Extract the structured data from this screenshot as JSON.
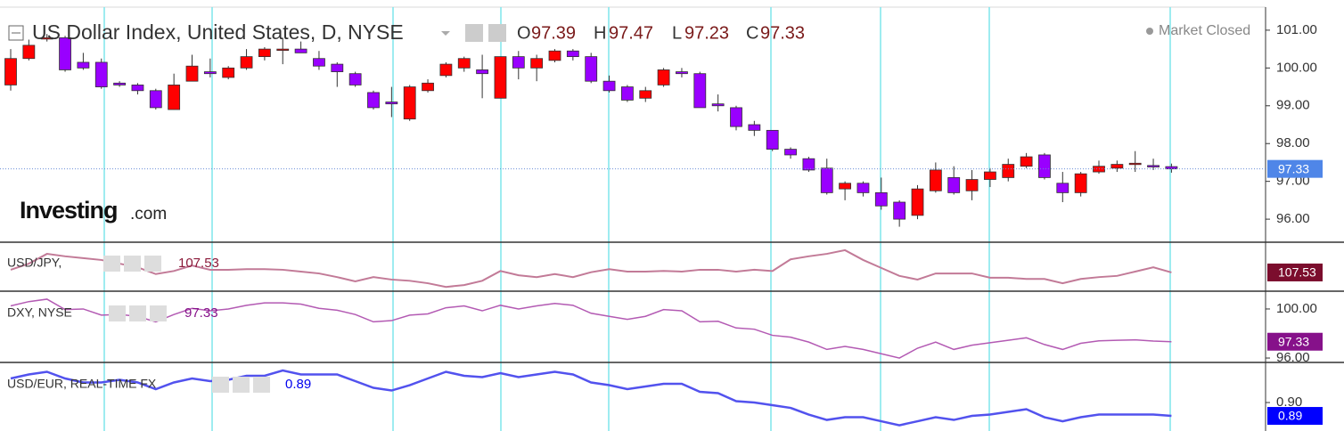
{
  "header": {
    "title": "US Dollar Index, United States, D, NYSE",
    "ohlc_letters": [
      "O",
      "H",
      "L",
      "C"
    ],
    "status": "Market Closed",
    "logo": "Investing",
    "logo_suffix": ".com"
  },
  "chart_data": [
    {
      "type": "candlestick",
      "up_color": "#ff0000",
      "down_color": "#9900ff",
      "last_line": true,
      "open": [
        99.55,
        100.25,
        100.8,
        100.8,
        100.15,
        100.15,
        99.6,
        99.55,
        99.4,
        98.9,
        99.65,
        99.9,
        99.75,
        100.0,
        100.3,
        100.5,
        100.5,
        100.25,
        100.1,
        99.85,
        99.35,
        99.1,
        98.65,
        99.4,
        99.8,
        100.0,
        99.95,
        99.2,
        100.3,
        100.0,
        100.2,
        100.45,
        100.3,
        99.65,
        99.5,
        99.2,
        99.55,
        99.9,
        99.85,
        99.05,
        98.95,
        98.5,
        98.35,
        97.85,
        97.6,
        97.35,
        96.8,
        96.95,
        96.7,
        96.45,
        96.1,
        96.75,
        97.1,
        96.75,
        97.05,
        97.1,
        97.4,
        97.7,
        96.95,
        96.7,
        97.25,
        97.35,
        97.45,
        97.42,
        97.39
      ],
      "high": [
        100.5,
        100.75,
        100.9,
        100.85,
        100.4,
        100.25,
        99.65,
        99.6,
        99.45,
        99.85,
        100.35,
        100.25,
        100.05,
        100.5,
        100.55,
        100.8,
        100.7,
        100.45,
        100.15,
        99.9,
        99.4,
        99.5,
        99.55,
        99.7,
        100.15,
        100.3,
        100.35,
        100.3,
        100.45,
        100.35,
        100.5,
        100.5,
        100.4,
        99.8,
        99.55,
        99.5,
        100.0,
        100.0,
        99.9,
        99.3,
        99.0,
        98.6,
        98.35,
        97.9,
        97.65,
        97.6,
        97.0,
        97.0,
        97.1,
        96.5,
        96.9,
        97.5,
        97.4,
        97.3,
        97.35,
        97.6,
        97.75,
        97.75,
        97.25,
        97.25,
        97.55,
        97.55,
        97.8,
        97.6,
        97.47
      ],
      "low": [
        99.4,
        100.2,
        100.7,
        99.9,
        99.95,
        99.45,
        99.5,
        99.3,
        98.9,
        98.9,
        99.65,
        99.75,
        99.7,
        99.95,
        100.2,
        100.1,
        100.4,
        99.95,
        99.5,
        99.5,
        98.9,
        98.7,
        98.6,
        99.35,
        99.75,
        99.9,
        99.2,
        99.2,
        99.7,
        99.65,
        100.15,
        100.2,
        99.6,
        99.35,
        99.1,
        99.1,
        99.5,
        99.75,
        98.95,
        98.85,
        98.35,
        98.2,
        97.8,
        97.6,
        97.25,
        96.65,
        96.5,
        96.6,
        96.25,
        95.8,
        96.0,
        96.7,
        96.65,
        96.5,
        96.85,
        97.0,
        97.35,
        97.05,
        96.45,
        96.6,
        97.2,
        97.25,
        97.25,
        97.3,
        97.23
      ],
      "close": [
        100.25,
        100.6,
        100.8,
        99.95,
        100.0,
        99.5,
        99.55,
        99.4,
        98.95,
        99.55,
        100.05,
        99.85,
        100.0,
        100.3,
        100.5,
        100.5,
        100.4,
        100.05,
        99.9,
        99.55,
        98.95,
        99.05,
        99.5,
        99.6,
        100.1,
        100.25,
        99.85,
        100.3,
        100.0,
        100.25,
        100.45,
        100.3,
        99.65,
        99.4,
        99.15,
        99.4,
        99.95,
        99.85,
        98.95,
        99.0,
        98.45,
        98.35,
        97.85,
        97.7,
        97.3,
        96.7,
        96.95,
        96.7,
        96.35,
        96.0,
        96.8,
        97.3,
        96.7,
        97.05,
        97.25,
        97.45,
        97.65,
        97.1,
        96.7,
        97.2,
        97.4,
        97.45,
        97.48,
        97.38,
        97.33
      ],
      "ylim": [
        95.39,
        101.61
      ],
      "yticks": [
        {
          "value": 96,
          "label": "96.00"
        },
        {
          "value": 97,
          "label": "97.00"
        },
        {
          "value": 98,
          "label": "98.00"
        },
        {
          "value": 99,
          "label": "99.00"
        },
        {
          "value": 100,
          "label": "100.00"
        },
        {
          "value": 101,
          "label": "101.00"
        }
      ],
      "label_bg": "#4f86e8"
    },
    {
      "type": "line",
      "name": "USD/JPY,",
      "color": "#c27a97",
      "text_color": "#8b1a3a",
      "label_bg": "#7b0d2d",
      "line_width": 2,
      "values": [
        107.75,
        108.25,
        109.05,
        108.85,
        108.7,
        108.55,
        108.25,
        107.95,
        107.4,
        107.65,
        108.1,
        107.75,
        107.75,
        107.8,
        107.8,
        107.75,
        107.6,
        107.45,
        107.15,
        106.8,
        107.15,
        106.95,
        106.85,
        106.65,
        106.35,
        106.5,
        106.85,
        107.65,
        107.3,
        107.15,
        107.4,
        107.15,
        107.55,
        107.8,
        107.6,
        107.6,
        107.65,
        107.6,
        107.75,
        107.75,
        107.6,
        107.75,
        107.65,
        108.6,
        108.85,
        109.05,
        109.35,
        108.55,
        107.9,
        107.25,
        106.95,
        107.45,
        107.45,
        107.45,
        107.1,
        107.1,
        107.0,
        107.0,
        106.65,
        107.0,
        107.15,
        107.25,
        107.6,
        107.95,
        107.53
      ],
      "ylim": [
        106,
        110
      ]
    },
    {
      "type": "line",
      "name": "DXY, NYSE",
      "color": "#b35ab3",
      "text_color": "#86118a",
      "label_bg": "#86118a",
      "line_width": 1.5,
      "values": [
        100.25,
        100.6,
        100.8,
        99.95,
        100.0,
        99.5,
        99.55,
        99.4,
        98.95,
        99.55,
        100.05,
        99.85,
        100.0,
        100.3,
        100.5,
        100.5,
        100.4,
        100.05,
        99.9,
        99.55,
        98.95,
        99.05,
        99.5,
        99.6,
        100.1,
        100.25,
        99.85,
        100.3,
        100.0,
        100.25,
        100.45,
        100.3,
        99.65,
        99.4,
        99.15,
        99.4,
        99.95,
        99.85,
        98.95,
        99.0,
        98.45,
        98.35,
        97.85,
        97.7,
        97.3,
        96.7,
        96.95,
        96.7,
        96.35,
        96.0,
        96.8,
        97.3,
        96.7,
        97.05,
        97.25,
        97.45,
        97.65,
        97.1,
        96.7,
        97.2,
        97.4,
        97.45,
        97.48,
        97.38,
        97.33
      ],
      "ylim": [
        95.64,
        101.45
      ],
      "yticks": [
        {
          "value": 96,
          "label": "96.00"
        },
        {
          "value": 100,
          "label": "100.00"
        }
      ]
    },
    {
      "type": "line",
      "name": "USD/EUR, REAL-TIME FX",
      "color": "#5252ee",
      "text_color": "#0000ee",
      "label_bg": "#0000ff",
      "line_width": 2.5,
      "values": [
        0.918,
        0.921,
        0.923,
        0.918,
        0.915,
        0.915,
        0.917,
        0.915,
        0.91,
        0.915,
        0.918,
        0.916,
        0.917,
        0.92,
        0.92,
        0.924,
        0.921,
        0.921,
        0.921,
        0.916,
        0.911,
        0.909,
        0.913,
        0.918,
        0.923,
        0.92,
        0.919,
        0.922,
        0.919,
        0.921,
        0.923,
        0.921,
        0.915,
        0.913,
        0.91,
        0.912,
        0.914,
        0.914,
        0.908,
        0.907,
        0.901,
        0.9,
        0.898,
        0.896,
        0.891,
        0.887,
        0.889,
        0.889,
        0.886,
        0.883,
        0.886,
        0.889,
        0.887,
        0.89,
        0.891,
        0.893,
        0.895,
        0.889,
        0.886,
        0.889,
        0.891,
        0.891,
        0.891,
        0.891,
        0.89
      ],
      "ylim": [
        0.8787,
        0.93
      ],
      "yticks": [
        {
          "value": 0.9,
          "label": "0.90"
        }
      ]
    }
  ]
}
